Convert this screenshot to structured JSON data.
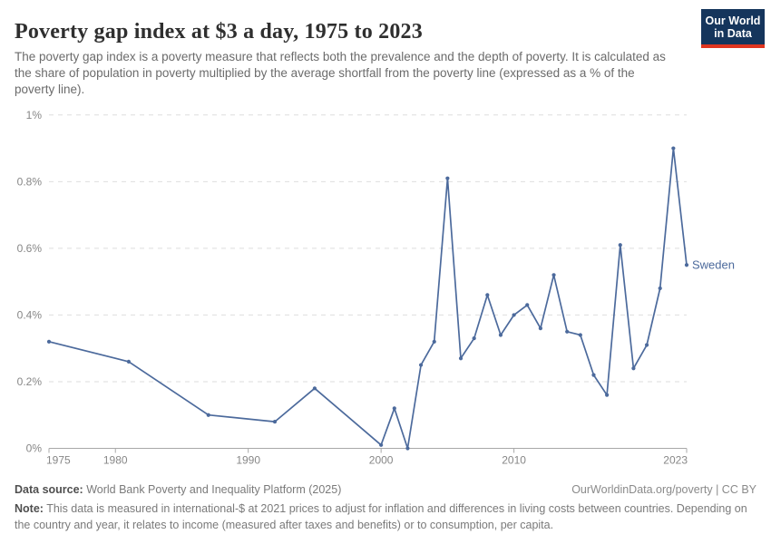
{
  "header": {
    "title": "Poverty gap index at $3 a day, 1975 to 2023",
    "subtitle": "The poverty gap index is a poverty measure that reflects both the prevalence and the depth of poverty. It is calculated as the share of population in poverty multiplied by the average shortfall from the poverty line (expressed as a % of the poverty line).",
    "logo": {
      "line1": "Our World",
      "line2": "in Data",
      "bg_color": "#15355c",
      "accent_color": "#e0351f"
    }
  },
  "chart_data": {
    "type": "line",
    "title": "Poverty gap index at $3 a day, 1975 to 2023",
    "xlabel": "",
    "ylabel": "",
    "xlim": [
      1975,
      2023
    ],
    "ylim": [
      0,
      1
    ],
    "grid": "horizontal dashed",
    "legend_position": "end-of-line label",
    "x_ticks": [
      1975,
      1980,
      1990,
      2000,
      2010,
      2023
    ],
    "y_ticks": [
      {
        "value": 0,
        "label": "0%"
      },
      {
        "value": 0.2,
        "label": "0.2%"
      },
      {
        "value": 0.4,
        "label": "0.4%"
      },
      {
        "value": 0.6,
        "label": "0.6%"
      },
      {
        "value": 0.8,
        "label": "0.8%"
      },
      {
        "value": 1,
        "label": "1%"
      }
    ],
    "series": [
      {
        "name": "Sweden",
        "color": "#4c6a9c",
        "x": [
          1975,
          1981,
          1987,
          1992,
          1995,
          2000,
          2001,
          2002,
          2003,
          2004,
          2005,
          2006,
          2007,
          2008,
          2009,
          2010,
          2011,
          2012,
          2013,
          2014,
          2015,
          2016,
          2017,
          2018,
          2019,
          2020,
          2021,
          2022,
          2023
        ],
        "values": [
          0.32,
          0.26,
          0.1,
          0.08,
          0.18,
          0.01,
          0.12,
          0.0,
          0.25,
          0.32,
          0.81,
          0.27,
          0.33,
          0.46,
          0.34,
          0.4,
          0.43,
          0.36,
          0.52,
          0.35,
          0.34,
          0.22,
          0.16,
          0.61,
          0.24,
          0.31,
          0.48,
          0.9,
          0.55
        ]
      }
    ]
  },
  "footer": {
    "datasource_label": "Data source:",
    "datasource_text": " World Bank Poverty and Inequality Platform (2025)",
    "rights": "OurWorldinData.org/poverty | CC BY",
    "note_label": "Note:",
    "note_text": " This data is measured in international-$ at 2021 prices to adjust for inflation and differences in living costs between countries. Depending on the country and year, it relates to income (measured after taxes and benefits) or to consumption, per capita."
  }
}
